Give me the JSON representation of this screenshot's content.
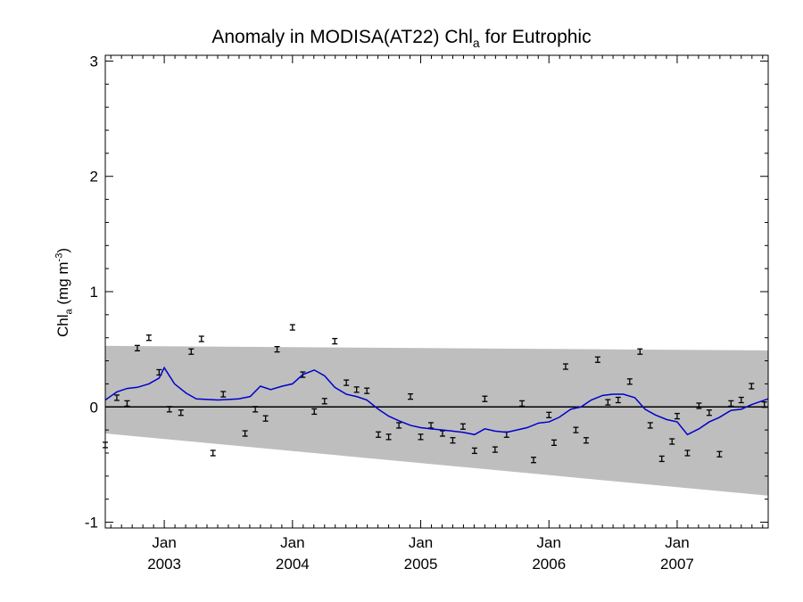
{
  "chart_data": {
    "type": "line",
    "title_main": "Anomaly in MODISA(AT22) Chl",
    "title_sub": "a",
    "title_tail": " for Eutrophic",
    "ylabel_main": "Chl",
    "ylabel_sub": "a",
    "ylabel_units": " (mg m",
    "ylabel_sup": "-3",
    "ylabel_close": ")",
    "ylim": [
      -1.05,
      3.05
    ],
    "xlim": [
      2002.54,
      2007.71
    ],
    "yticks": [
      {
        "v": -1,
        "label": "-1"
      },
      {
        "v": 0,
        "label": "0"
      },
      {
        "v": 1,
        "label": "1"
      },
      {
        "v": 2,
        "label": "2"
      },
      {
        "v": 3,
        "label": "3"
      }
    ],
    "xticks": [
      {
        "v": 2003.0,
        "month": "Jan",
        "year": "2003"
      },
      {
        "v": 2004.0,
        "month": "Jan",
        "year": "2004"
      },
      {
        "v": 2005.0,
        "month": "Jan",
        "year": "2005"
      },
      {
        "v": 2006.0,
        "month": "Jan",
        "year": "2006"
      },
      {
        "v": 2007.0,
        "month": "Jan",
        "year": "2007"
      }
    ],
    "band": {
      "upper": [
        0.53,
        0.49
      ],
      "lower": [
        -0.23,
        -0.77
      ]
    },
    "zero_line": 0,
    "points": [
      [
        2002.54,
        -0.33
      ],
      [
        2002.63,
        0.08
      ],
      [
        2002.71,
        0.03
      ],
      [
        2002.79,
        0.51
      ],
      [
        2002.88,
        0.6
      ],
      [
        2002.96,
        0.3
      ],
      [
        2003.04,
        -0.02
      ],
      [
        2003.13,
        -0.05
      ],
      [
        2003.21,
        0.48
      ],
      [
        2003.29,
        0.59
      ],
      [
        2003.38,
        -0.4
      ],
      [
        2003.46,
        0.11
      ],
      [
        2003.63,
        -0.23
      ],
      [
        2003.71,
        -0.02
      ],
      [
        2003.79,
        -0.1
      ],
      [
        2003.88,
        0.5
      ],
      [
        2004.0,
        0.69
      ],
      [
        2004.08,
        0.28
      ],
      [
        2004.17,
        -0.04
      ],
      [
        2004.25,
        0.05
      ],
      [
        2004.33,
        0.57
      ],
      [
        2004.42,
        0.21
      ],
      [
        2004.5,
        0.15
      ],
      [
        2004.58,
        0.14
      ],
      [
        2004.67,
        -0.24
      ],
      [
        2004.75,
        -0.26
      ],
      [
        2004.83,
        -0.16
      ],
      [
        2004.92,
        0.09
      ],
      [
        2005.0,
        -0.26
      ],
      [
        2005.08,
        -0.16
      ],
      [
        2005.17,
        -0.23
      ],
      [
        2005.25,
        -0.29
      ],
      [
        2005.33,
        -0.17
      ],
      [
        2005.42,
        -0.38
      ],
      [
        2005.5,
        0.07
      ],
      [
        2005.58,
        -0.37
      ],
      [
        2005.67,
        -0.24
      ],
      [
        2005.79,
        0.03
      ],
      [
        2005.88,
        -0.46
      ],
      [
        2006.0,
        -0.07
      ],
      [
        2006.04,
        -0.31
      ],
      [
        2006.13,
        0.35
      ],
      [
        2006.21,
        -0.2
      ],
      [
        2006.29,
        -0.29
      ],
      [
        2006.38,
        0.41
      ],
      [
        2006.46,
        0.04
      ],
      [
        2006.54,
        0.06
      ],
      [
        2006.63,
        0.22
      ],
      [
        2006.71,
        0.48
      ],
      [
        2006.79,
        -0.16
      ],
      [
        2006.88,
        -0.45
      ],
      [
        2006.96,
        -0.3
      ],
      [
        2007.0,
        -0.08
      ],
      [
        2007.08,
        -0.4
      ],
      [
        2007.17,
        0.01
      ],
      [
        2007.25,
        -0.05
      ],
      [
        2007.33,
        -0.41
      ],
      [
        2007.42,
        0.03
      ],
      [
        2007.5,
        0.06
      ],
      [
        2007.58,
        0.18
      ],
      [
        2007.68,
        0.02
      ]
    ],
    "line": [
      [
        2002.54,
        0.06
      ],
      [
        2002.63,
        0.13
      ],
      [
        2002.71,
        0.16
      ],
      [
        2002.79,
        0.17
      ],
      [
        2002.88,
        0.2
      ],
      [
        2002.96,
        0.25
      ],
      [
        2003.0,
        0.34
      ],
      [
        2003.08,
        0.2
      ],
      [
        2003.17,
        0.12
      ],
      [
        2003.25,
        0.07
      ],
      [
        2003.42,
        0.06
      ],
      [
        2003.58,
        0.07
      ],
      [
        2003.67,
        0.09
      ],
      [
        2003.75,
        0.18
      ],
      [
        2003.83,
        0.15
      ],
      [
        2003.92,
        0.18
      ],
      [
        2004.0,
        0.2
      ],
      [
        2004.08,
        0.28
      ],
      [
        2004.17,
        0.32
      ],
      [
        2004.25,
        0.27
      ],
      [
        2004.33,
        0.17
      ],
      [
        2004.42,
        0.11
      ],
      [
        2004.5,
        0.09
      ],
      [
        2004.58,
        0.06
      ],
      [
        2004.67,
        -0.02
      ],
      [
        2004.75,
        -0.08
      ],
      [
        2004.83,
        -0.12
      ],
      [
        2004.92,
        -0.16
      ],
      [
        2005.0,
        -0.18
      ],
      [
        2005.08,
        -0.19
      ],
      [
        2005.17,
        -0.2
      ],
      [
        2005.25,
        -0.21
      ],
      [
        2005.33,
        -0.22
      ],
      [
        2005.42,
        -0.24
      ],
      [
        2005.5,
        -0.19
      ],
      [
        2005.58,
        -0.21
      ],
      [
        2005.67,
        -0.22
      ],
      [
        2005.75,
        -0.2
      ],
      [
        2005.83,
        -0.18
      ],
      [
        2005.92,
        -0.14
      ],
      [
        2006.0,
        -0.13
      ],
      [
        2006.08,
        -0.09
      ],
      [
        2006.17,
        -0.02
      ],
      [
        2006.25,
        0.0
      ],
      [
        2006.33,
        0.06
      ],
      [
        2006.42,
        0.1
      ],
      [
        2006.5,
        0.11
      ],
      [
        2006.58,
        0.11
      ],
      [
        2006.67,
        0.08
      ],
      [
        2006.75,
        -0.02
      ],
      [
        2006.83,
        -0.07
      ],
      [
        2006.92,
        -0.11
      ],
      [
        2007.0,
        -0.13
      ],
      [
        2007.08,
        -0.24
      ],
      [
        2007.17,
        -0.19
      ],
      [
        2007.25,
        -0.13
      ],
      [
        2007.33,
        -0.09
      ],
      [
        2007.42,
        -0.03
      ],
      [
        2007.5,
        -0.02
      ],
      [
        2007.58,
        0.02
      ],
      [
        2007.71,
        0.07
      ]
    ],
    "colors": {
      "band": "#bebebe",
      "line": "#0000cc",
      "zero": "#000000",
      "points": "#000000"
    },
    "grid": false,
    "legend": "none"
  }
}
